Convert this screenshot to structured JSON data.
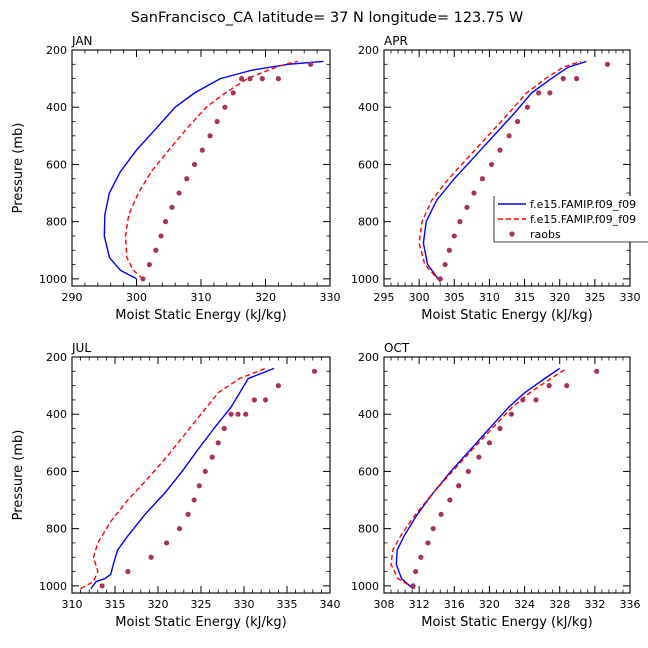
{
  "title": "SanFrancisco_CA  latitude= 37 N longitude= 123.75 W",
  "colors": {
    "model1": "#0000ff",
    "model2": "#ff0000",
    "raobs": "#a8335a"
  },
  "legend": {
    "placement": "right of APR panel",
    "entries": [
      "f.e15.FAMIP.f09_f09",
      "f.e15.FAMIP.f09_f09",
      "raobs"
    ]
  },
  "chart_data": [
    {
      "type": "line",
      "title": "JAN",
      "xlabel": "Moist Static Energy (kJ/kg)",
      "ylabel": "Pressure (mb)",
      "xlim": [
        290,
        330
      ],
      "ylim": [
        200,
        1025
      ],
      "y_reversed": true,
      "xticks": [
        290,
        300,
        310,
        320,
        330
      ],
      "yticks": [
        200,
        400,
        600,
        800,
        1000
      ],
      "series": [
        {
          "name": "f.e15.FAMIP.f09_f09",
          "style": "solid",
          "color": "#0000ff",
          "x": [
            300.0,
            297.5,
            295.8,
            295.0,
            295.1,
            295.8,
            297.5,
            300.0,
            303.0,
            306.0,
            309.0,
            313.0,
            318.0,
            323.5,
            329.0
          ],
          "y": [
            1000,
            970,
            925,
            850,
            775,
            700,
            625,
            550,
            475,
            400,
            350,
            300,
            270,
            250,
            240
          ]
        },
        {
          "name": "f.e15.FAMIP.f09_f09",
          "style": "dashed",
          "color": "#ff0000",
          "x": [
            301.0,
            299.5,
            298.5,
            298.3,
            298.8,
            300.3,
            302.3,
            305.0,
            307.8,
            310.8,
            313.8,
            317.2,
            320.5,
            323.0,
            325.0
          ],
          "y": [
            1000,
            970,
            925,
            850,
            775,
            700,
            625,
            550,
            475,
            400,
            350,
            300,
            270,
            250,
            240
          ]
        },
        {
          "name": "raobs",
          "style": "markers",
          "color": "#a8335a",
          "x": [
            301.0,
            302.0,
            303.0,
            303.8,
            304.5,
            305.5,
            306.6,
            307.8,
            309.0,
            310.2,
            311.4,
            312.5,
            313.7,
            315.0,
            316.3,
            317.6,
            319.5,
            322.0,
            327.0
          ],
          "y": [
            1000,
            950,
            900,
            850,
            800,
            750,
            700,
            650,
            600,
            550,
            500,
            450,
            400,
            350,
            300,
            300,
            300,
            300,
            250
          ]
        }
      ]
    },
    {
      "type": "line",
      "title": "APR",
      "xlabel": "Moist Static Energy (kJ/kg)",
      "ylabel": "",
      "xlim": [
        295,
        330
      ],
      "ylim": [
        200,
        1025
      ],
      "y_reversed": true,
      "xticks": [
        295,
        300,
        305,
        310,
        315,
        320,
        325,
        330
      ],
      "yticks": [
        200,
        400,
        600,
        800,
        1000
      ],
      "series": [
        {
          "name": "f.e15.FAMIP.f09_f09",
          "style": "solid",
          "color": "#0000ff",
          "x": [
            303.0,
            301.2,
            300.6,
            301.0,
            302.5,
            305.0,
            307.8,
            310.6,
            313.4,
            316.0,
            318.8,
            321.2,
            323.8
          ],
          "y": [
            1010,
            950,
            875,
            800,
            725,
            650,
            575,
            500,
            425,
            350,
            300,
            260,
            240
          ]
        },
        {
          "name": "f.e15.FAMIP.f09_f09",
          "style": "dashed",
          "color": "#ff0000",
          "x": [
            303.0,
            300.8,
            300.0,
            300.4,
            301.8,
            304.2,
            307.0,
            309.8,
            312.6,
            315.3,
            318.0,
            320.5,
            323.0
          ],
          "y": [
            1010,
            950,
            875,
            800,
            725,
            650,
            575,
            500,
            425,
            350,
            300,
            260,
            240
          ]
        },
        {
          "name": "raobs",
          "style": "markers",
          "color": "#a8335a",
          "x": [
            303.0,
            303.7,
            304.3,
            305.0,
            305.8,
            306.8,
            307.8,
            309.0,
            310.3,
            311.5,
            312.8,
            314.0,
            315.4,
            317.0,
            318.6,
            320.5,
            322.4,
            326.8
          ],
          "y": [
            1000,
            950,
            900,
            850,
            800,
            750,
            700,
            650,
            600,
            550,
            500,
            450,
            400,
            350,
            350,
            300,
            300,
            250
          ]
        }
      ]
    },
    {
      "type": "line",
      "title": "JUL",
      "xlabel": "Moist Static Energy (kJ/kg)",
      "ylabel": "Pressure (mb)",
      "xlim": [
        310,
        340
      ],
      "ylim": [
        200,
        1025
      ],
      "y_reversed": true,
      "xticks": [
        310,
        315,
        320,
        325,
        330,
        335,
        340
      ],
      "yticks": [
        200,
        400,
        600,
        800,
        1000
      ],
      "series": [
        {
          "name": "f.e15.FAMIP.f09_f09",
          "style": "solid",
          "color": "#0000ff",
          "x": [
            312.2,
            312.8,
            313.8,
            314.5,
            314.8,
            315.3,
            316.5,
            318.5,
            320.8,
            322.8,
            324.6,
            326.5,
            328.5,
            330.5,
            333.5
          ],
          "y": [
            1010,
            985,
            975,
            960,
            925,
            875,
            825,
            750,
            675,
            600,
            525,
            450,
            375,
            275,
            240
          ]
        },
        {
          "name": "f.e15.FAMIP.f09_f09",
          "style": "dashed",
          "color": "#ff0000",
          "x": [
            311.0,
            312.5,
            313.0,
            312.5,
            313.0,
            314.5,
            316.5,
            318.8,
            321.0,
            323.0,
            325.0,
            327.0,
            329.5,
            332.5
          ],
          "y": [
            1010,
            985,
            950,
            900,
            850,
            775,
            700,
            625,
            550,
            475,
            400,
            325,
            275,
            240
          ]
        },
        {
          "name": "raobs",
          "style": "markers",
          "color": "#a8335a",
          "x": [
            313.5,
            316.5,
            319.2,
            321.0,
            322.5,
            323.5,
            324.2,
            324.8,
            325.5,
            326.3,
            327.0,
            327.7,
            328.5,
            329.3,
            330.2,
            331.2,
            332.5,
            334.0,
            338.2
          ],
          "y": [
            1000,
            950,
            900,
            850,
            800,
            750,
            700,
            650,
            600,
            550,
            500,
            450,
            400,
            400,
            400,
            350,
            350,
            300,
            250
          ]
        }
      ]
    },
    {
      "type": "line",
      "title": "OCT",
      "xlabel": "Moist Static Energy (kJ/kg)",
      "ylabel": "",
      "xlim": [
        308,
        336
      ],
      "ylim": [
        200,
        1025
      ],
      "y_reversed": true,
      "xticks": [
        308,
        312,
        316,
        320,
        324,
        328,
        332,
        336
      ],
      "yticks": [
        200,
        400,
        600,
        800,
        1000
      ],
      "series": [
        {
          "name": "f.e15.FAMIP.f09_f09",
          "style": "solid",
          "color": "#0000ff",
          "x": [
            311.3,
            310.0,
            309.4,
            309.5,
            310.3,
            311.8,
            313.6,
            315.6,
            317.8,
            320.0,
            322.2,
            324.0,
            326.3,
            328.0
          ],
          "y": [
            1010,
            975,
            925,
            875,
            825,
            750,
            675,
            600,
            525,
            450,
            375,
            325,
            275,
            240
          ]
        },
        {
          "name": "f.e15.FAMIP.f09_f09",
          "style": "dashed",
          "color": "#ff0000",
          "x": [
            311.5,
            309.6,
            308.8,
            309.0,
            309.9,
            311.6,
            313.6,
            315.8,
            318.0,
            320.3,
            322.6,
            324.6,
            327.0,
            328.8
          ],
          "y": [
            1010,
            975,
            925,
            875,
            825,
            750,
            675,
            600,
            525,
            450,
            375,
            325,
            275,
            240
          ]
        },
        {
          "name": "raobs",
          "style": "markers",
          "color": "#a8335a",
          "x": [
            311.3,
            311.6,
            312.2,
            313.0,
            313.6,
            314.5,
            315.5,
            316.5,
            317.6,
            318.8,
            320.0,
            321.2,
            322.5,
            323.8,
            325.3,
            326.8,
            328.8,
            332.2
          ],
          "y": [
            1000,
            950,
            900,
            850,
            800,
            750,
            700,
            650,
            600,
            550,
            500,
            450,
            400,
            350,
            350,
            300,
            300,
            250
          ]
        }
      ]
    }
  ]
}
